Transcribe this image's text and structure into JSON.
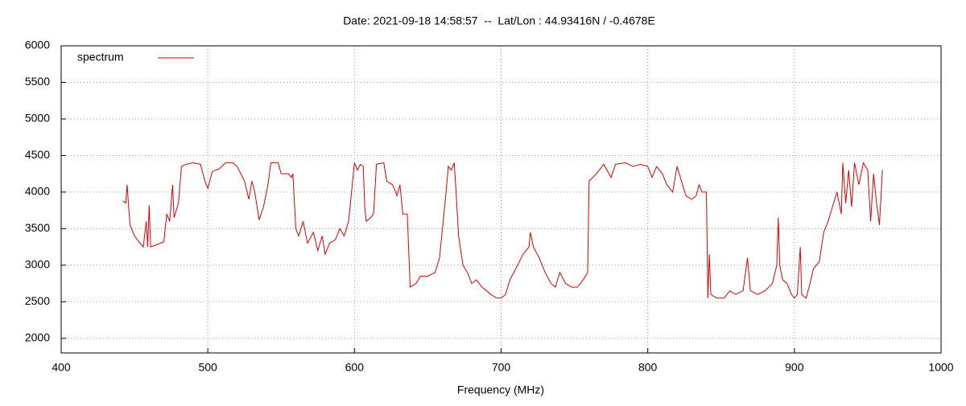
{
  "chart_data": {
    "type": "line",
    "title": "Date: 2021-09-18 14:58:57  --  Lat/Lon : 44.93416N / -0.4678E",
    "x_label": "Frequency (MHz)",
    "legend": "top left",
    "grid": true,
    "xlim": [
      400,
      1000
    ],
    "xticks": [
      400,
      500,
      600,
      700,
      800,
      900,
      1000
    ],
    "ylim": [
      1800,
      6000
    ],
    "yticks": [
      2000,
      2500,
      3000,
      3500,
      4000,
      4500,
      5000,
      5500,
      6000
    ],
    "series": [
      {
        "name": "spectrum",
        "color": "#dd0000",
        "x": [
          442,
          444,
          445,
          446,
          447,
          450,
          453,
          456,
          458,
          459,
          460,
          461,
          465,
          470,
          472,
          474,
          476,
          477,
          480,
          482,
          485,
          490,
          495,
          498,
          500,
          503,
          508,
          512,
          517,
          520,
          525,
          528,
          530,
          532,
          535,
          538,
          541,
          543,
          548,
          550,
          555,
          557,
          558,
          560,
          562,
          565,
          568,
          572,
          575,
          578,
          580,
          583,
          587,
          590,
          593,
          596,
          598,
          600,
          602,
          604,
          606,
          607,
          608,
          611,
          613,
          615,
          620,
          622,
          626,
          629,
          631,
          633,
          636,
          638,
          642,
          645,
          650,
          655,
          658,
          662,
          664,
          666,
          668,
          669,
          671,
          674,
          677,
          680,
          683,
          687,
          690,
          693,
          697,
          700,
          703,
          706,
          710,
          715,
          719,
          720,
          722,
          726,
          730,
          734,
          737,
          740,
          744,
          748,
          752,
          756,
          759,
          760,
          765,
          770,
          775,
          778,
          785,
          790,
          795,
          800,
          803,
          806,
          810,
          813,
          817,
          820,
          823,
          826,
          830,
          833,
          835,
          837,
          840,
          841,
          842,
          843,
          847,
          852,
          856,
          860,
          865,
          868,
          870,
          875,
          880,
          885,
          888,
          889,
          890,
          892,
          895,
          898,
          900,
          902,
          904,
          905,
          908,
          910,
          913,
          917,
          920,
          923,
          926,
          929,
          932,
          933,
          935,
          937,
          939,
          941,
          944,
          947,
          950,
          952,
          954,
          956,
          958,
          960
        ],
        "values": [
          3880,
          3850,
          4100,
          3800,
          3550,
          3400,
          3320,
          3250,
          3600,
          3250,
          3820,
          3250,
          3280,
          3320,
          3700,
          3600,
          4100,
          3650,
          3850,
          4350,
          4380,
          4400,
          4380,
          4150,
          4050,
          4280,
          4320,
          4400,
          4400,
          4350,
          4150,
          3900,
          4150,
          4000,
          3620,
          3800,
          4100,
          4400,
          4400,
          4250,
          4250,
          4200,
          4250,
          3500,
          3400,
          3600,
          3300,
          3450,
          3200,
          3400,
          3150,
          3300,
          3350,
          3500,
          3400,
          3600,
          4000,
          4400,
          4300,
          4380,
          4350,
          3800,
          3600,
          3650,
          3700,
          4380,
          4400,
          4150,
          4100,
          3950,
          4100,
          3700,
          3700,
          2700,
          2750,
          2850,
          2850,
          2900,
          3100,
          3900,
          4350,
          4300,
          4400,
          4100,
          3400,
          3000,
          2900,
          2750,
          2800,
          2700,
          2650,
          2600,
          2550,
          2550,
          2600,
          2800,
          2950,
          3150,
          3250,
          3450,
          3250,
          3100,
          2900,
          2750,
          2700,
          2900,
          2750,
          2700,
          2700,
          2800,
          2900,
          4150,
          4250,
          4380,
          4200,
          4380,
          4400,
          4350,
          4380,
          4350,
          4200,
          4350,
          4250,
          4100,
          4000,
          4350,
          4150,
          3950,
          3900,
          3950,
          4100,
          4000,
          4000,
          2550,
          3150,
          2600,
          2550,
          2550,
          2650,
          2600,
          2650,
          3100,
          2650,
          2600,
          2650,
          2750,
          3000,
          3650,
          3000,
          2800,
          2750,
          2600,
          2550,
          2600,
          3250,
          2600,
          2550,
          2700,
          2950,
          3050,
          3450,
          3600,
          3800,
          4000,
          3700,
          4400,
          3850,
          4300,
          3800,
          4400,
          4100,
          4400,
          4300,
          3600,
          4250,
          3850,
          3550,
          4300
        ]
      }
    ]
  }
}
